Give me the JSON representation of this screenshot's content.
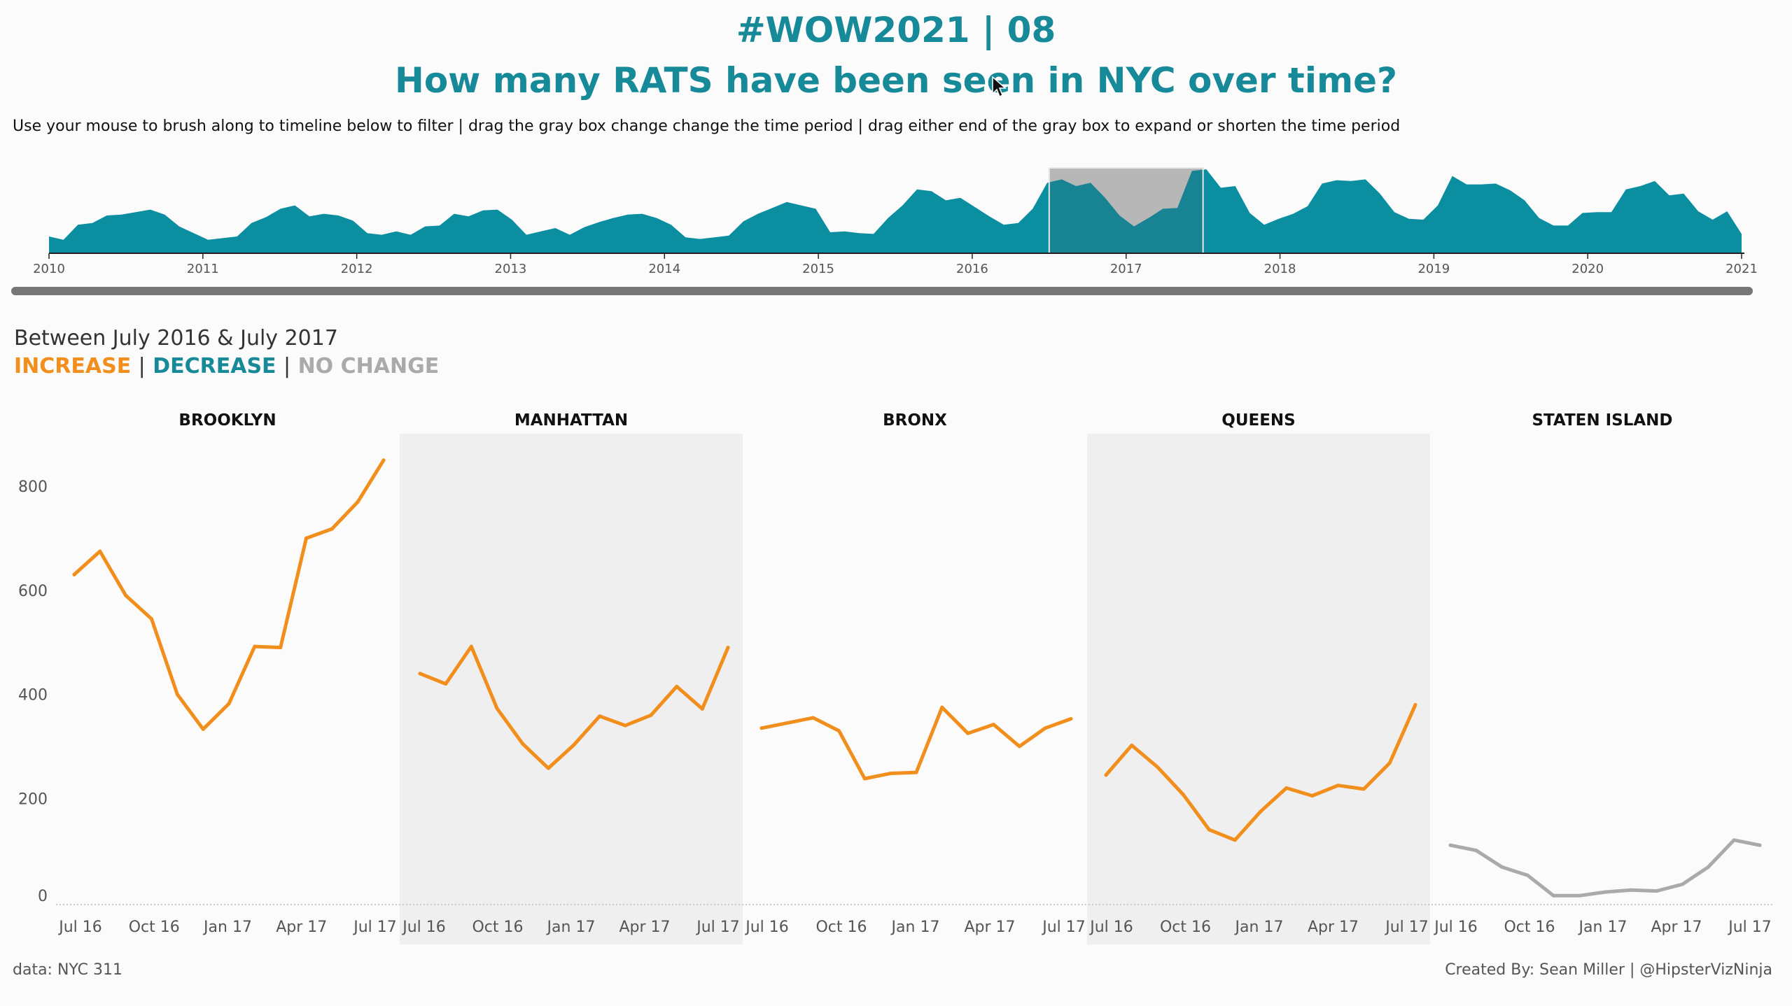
{
  "header": {
    "title": "#WOW2021 | 08",
    "subtitle": "How many RATS have been seen in NYC over time?",
    "instructions": "Use your mouse to brush along to timeline below to filter | drag the gray box change change the time period | drag either end of the gray box to expand or shorten the time period"
  },
  "period_title": "Between July 2016 & July 2017",
  "legend": {
    "increase": "INCREASE",
    "decrease": "DECREASE",
    "no_change": "NO CHANGE",
    "separator": "|"
  },
  "colors": {
    "teal": "#0a8ea0",
    "increase": "#f28e1c",
    "decrease": "#178a99",
    "no_change": "#aaaaaa",
    "band": "#efefef",
    "brush": "#cccccc"
  },
  "footer": {
    "source": "data: NYC 311",
    "credit": "Created By: Sean Miller | @HipsterVizNinja"
  },
  "chart_data": [
    {
      "type": "area",
      "name": "timeline",
      "x_start": "2010-01",
      "x_end": "2021-01",
      "x_ticks": [
        "2010",
        "2011",
        "2012",
        "2013",
        "2014",
        "2015",
        "2016",
        "2017",
        "2018",
        "2019",
        "2020",
        "2021"
      ],
      "brush": {
        "start": "2016-07",
        "end": "2017-07"
      },
      "values": [
        0.2,
        0.16,
        0.34,
        0.36,
        0.45,
        0.46,
        0.49,
        0.52,
        0.46,
        0.32,
        0.24,
        0.16,
        0.18,
        0.2,
        0.36,
        0.43,
        0.53,
        0.57,
        0.44,
        0.47,
        0.45,
        0.39,
        0.24,
        0.22,
        0.26,
        0.22,
        0.32,
        0.33,
        0.47,
        0.44,
        0.51,
        0.52,
        0.4,
        0.22,
        0.26,
        0.3,
        0.22,
        0.31,
        0.37,
        0.42,
        0.46,
        0.47,
        0.42,
        0.34,
        0.19,
        0.17,
        0.19,
        0.21,
        0.38,
        0.47,
        0.54,
        0.61,
        0.57,
        0.53,
        0.25,
        0.26,
        0.24,
        0.23,
        0.42,
        0.57,
        0.76,
        0.74,
        0.63,
        0.66,
        0.55,
        0.44,
        0.34,
        0.36,
        0.53,
        0.84,
        0.88,
        0.8,
        0.84,
        0.66,
        0.45,
        0.32,
        0.42,
        0.53,
        0.54,
        0.98,
        1.0,
        0.78,
        0.8,
        0.48,
        0.34,
        0.41,
        0.47,
        0.56,
        0.83,
        0.87,
        0.86,
        0.88,
        0.71,
        0.49,
        0.41,
        0.4,
        0.57,
        0.92,
        0.82,
        0.82,
        0.83,
        0.75,
        0.63,
        0.42,
        0.33,
        0.33,
        0.48,
        0.49,
        0.49,
        0.76,
        0.8,
        0.86,
        0.69,
        0.71,
        0.5,
        0.4,
        0.5,
        0.23
      ]
    },
    {
      "type": "line",
      "name": "small-multiples",
      "ylim": [
        0,
        900
      ],
      "y_ticks": [
        0,
        200,
        400,
        600,
        800
      ],
      "x_labels": [
        "Jul 16",
        "Oct 16",
        "Jan 17",
        "Apr 17",
        "Jul 17"
      ],
      "x_label_months": [
        0,
        3,
        6,
        9,
        12
      ],
      "series": [
        {
          "name": "BROOKLYN",
          "trend": "increase",
          "values": [
            630,
            675,
            590,
            545,
            400,
            333,
            382,
            492,
            490,
            700,
            718,
            770,
            850
          ]
        },
        {
          "name": "MANHATTAN",
          "trend": "increase",
          "values": [
            440,
            420,
            492,
            373,
            305,
            258,
            303,
            358,
            340,
            360,
            415,
            372,
            490
          ]
        },
        {
          "name": "BRONX",
          "trend": "increase",
          "values": [
            335,
            345,
            355,
            330,
            238,
            248,
            250,
            375,
            325,
            342,
            300,
            335,
            353
          ]
        },
        {
          "name": "QUEENS",
          "trend": "increase",
          "values": [
            245,
            302,
            260,
            207,
            140,
            120,
            175,
            220,
            205,
            225,
            218,
            268,
            380
          ]
        },
        {
          "name": "STATEN ISLAND",
          "trend": "no_change",
          "values": [
            110,
            100,
            68,
            52,
            13,
            13,
            20,
            24,
            22,
            35,
            68,
            120,
            110
          ]
        }
      ]
    }
  ]
}
